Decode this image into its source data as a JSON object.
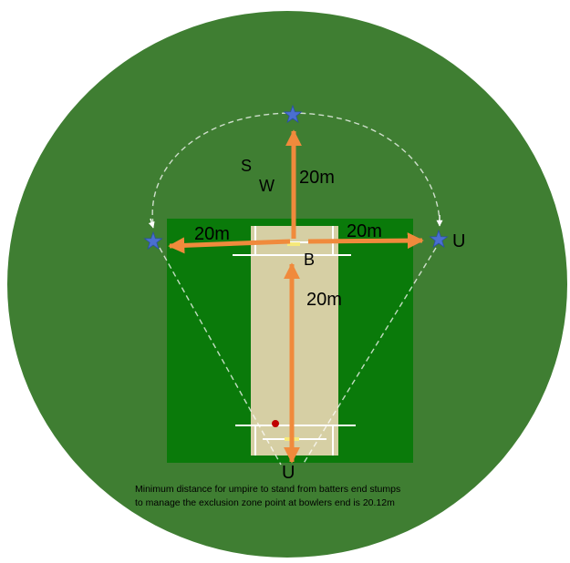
{
  "colors": {
    "field": "#3f7e32",
    "square": "#0a7a0a",
    "pitch": "#d6cfa4",
    "arrow": "#f08a3c",
    "star": "#4a6fd0",
    "crease": "#ffffff",
    "ball": "#c00000"
  },
  "labels": {
    "top_distance": "20m",
    "left_distance": "20m",
    "right_distance": "20m",
    "down_distance": "20m",
    "s": "S",
    "w": "W",
    "b": "B",
    "u_right": "U",
    "u_bottom": "U"
  },
  "note": {
    "line1": "Minimum distance for umpire to stand from batters end stumps",
    "line2": "to manage the exclusion zone point at bowlers end is 20.12m"
  },
  "icons": {
    "star": "star-icon",
    "ball": "ball-icon"
  }
}
